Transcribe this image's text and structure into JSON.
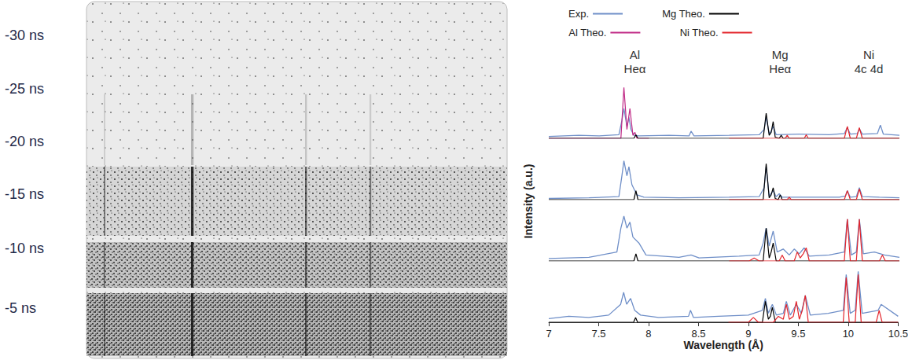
{
  "film": {
    "time_labels": [
      "-30 ns",
      "-25 ns",
      "-20 ns",
      "-15 ns",
      "-10 ns",
      "-5 ns"
    ]
  },
  "chart_data": {
    "type": "line",
    "xlabel": "Wavelength (Å)",
    "ylabel": "Intensity (a.u.)",
    "xlim": [
      7,
      10.5
    ],
    "xticks": [
      7,
      7.5,
      8,
      8.5,
      9,
      9.5,
      10,
      10.5
    ],
    "ylim": [
      0,
      1
    ],
    "tick_labels": "x",
    "legend": "top",
    "series": [
      {
        "name": "Exp.",
        "color": "#6f8fc8"
      },
      {
        "name": "Mg Theo.",
        "color": "#000000"
      },
      {
        "name": "Al Theo.",
        "color": "#c02a86"
      },
      {
        "name": "Ni Theo.",
        "color": "#e3242b"
      }
    ],
    "annotations": [
      {
        "lines": [
          "Al",
          "Heα"
        ],
        "x": 7.75
      },
      {
        "lines": [
          "Mg",
          "Heα"
        ],
        "x": 9.2
      },
      {
        "lines": [
          "Ni",
          "4c 4d"
        ],
        "x": 10.05
      }
    ],
    "panels": [
      {
        "series": [
          {
            "name": "Exp.",
            "x": [
              7,
              7.3,
              7.5,
              7.7,
              7.73,
              7.75,
              7.78,
              7.8,
              7.82,
              7.85,
              7.9,
              8.2,
              8.4,
              8.42,
              8.45,
              8.8,
              9.1,
              9.15,
              9.17,
              9.2,
              9.22,
              9.24,
              9.27,
              9.5,
              9.8,
              9.95,
              9.98,
              10.01,
              10.08,
              10.1,
              10.13,
              10.28,
              10.31,
              10.34,
              10.5
            ],
            "values": [
              0.03,
              0.05,
              0.04,
              0.06,
              0.3,
              0.5,
              0.2,
              0.35,
              0.15,
              0.05,
              0.04,
              0.05,
              0.04,
              0.12,
              0.04,
              0.05,
              0.06,
              0.15,
              0.35,
              0.08,
              0.12,
              0.2,
              0.06,
              0.07,
              0.06,
              0.08,
              0.18,
              0.07,
              0.08,
              0.16,
              0.07,
              0.08,
              0.22,
              0.07,
              0.05
            ]
          },
          {
            "name": "Al Theo.",
            "x": [
              7,
              7.72,
              7.75,
              7.78,
              7.81,
              7.84,
              7.86,
              7.88,
              8.0
            ],
            "values": [
              0,
              0,
              0.85,
              0.15,
              0.5,
              0.05,
              0.1,
              0,
              0
            ]
          },
          {
            "name": "Mg Theo.",
            "x": [
              7,
              7.85,
              7.87,
              7.89,
              9.14,
              9.17,
              9.2,
              9.22,
              9.24,
              9.26,
              9.3,
              9.32,
              9.34,
              10.5
            ],
            "values": [
              0,
              0,
              0.06,
              0,
              0,
              0.42,
              0.05,
              0.1,
              0.28,
              0.02,
              0,
              0.05,
              0,
              0
            ]
          },
          {
            "name": "Ni Theo.",
            "x": [
              8.8,
              9.36,
              9.38,
              9.4,
              9.55,
              9.57,
              9.59,
              9.95,
              9.98,
              10.01,
              10.07,
              10.1,
              10.13,
              10.5
            ],
            "values": [
              0,
              0,
              0.05,
              0,
              0,
              0.06,
              0,
              0,
              0.2,
              0,
              0,
              0.18,
              0,
              0
            ]
          }
        ]
      },
      {
        "series": [
          {
            "name": "Exp.",
            "x": [
              7,
              7.4,
              7.7,
              7.73,
              7.75,
              7.78,
              7.8,
              7.83,
              7.88,
              7.95,
              8.3,
              8.8,
              9.1,
              9.15,
              9.17,
              9.2,
              9.24,
              9.27,
              9.3,
              9.33,
              9.6,
              9.9,
              9.96,
              9.98,
              10.01,
              10.07,
              10.1,
              10.13,
              10.3,
              10.5
            ],
            "values": [
              0.02,
              0.03,
              0.05,
              0.4,
              0.65,
              0.4,
              0.55,
              0.25,
              0.08,
              0.04,
              0.03,
              0.04,
              0.05,
              0.2,
              0.55,
              0.06,
              0.15,
              0.05,
              0.1,
              0.04,
              0.04,
              0.04,
              0.06,
              0.15,
              0.04,
              0.05,
              0.2,
              0.05,
              0.04,
              0.03
            ]
          },
          {
            "name": "Mg Theo.",
            "x": [
              7,
              7.85,
              7.87,
              7.89,
              9.14,
              9.17,
              9.2,
              9.22,
              9.24,
              9.26,
              9.29,
              9.31,
              9.33,
              10.5
            ],
            "values": [
              0,
              0,
              0.15,
              0,
              0,
              0.6,
              0.03,
              0.08,
              0.2,
              0.02,
              0,
              0.08,
              0,
              0
            ]
          },
          {
            "name": "Ni Theo.",
            "x": [
              8.8,
              9.38,
              9.4,
              9.42,
              9.95,
              9.98,
              10.01,
              10.07,
              10.1,
              10.13,
              10.5
            ],
            "values": [
              0,
              0,
              0.04,
              0,
              0,
              0.15,
              0,
              0,
              0.18,
              0,
              0
            ]
          }
        ]
      },
      {
        "series": [
          {
            "name": "Exp.",
            "x": [
              7,
              7.4,
              7.68,
              7.72,
              7.75,
              7.78,
              7.81,
              7.84,
              7.9,
              7.97,
              8.3,
              8.42,
              8.5,
              8.9,
              9.1,
              9.14,
              9.17,
              9.2,
              9.24,
              9.28,
              9.34,
              9.4,
              9.45,
              9.5,
              9.55,
              9.6,
              9.8,
              9.95,
              9.98,
              10.02,
              10.07,
              10.1,
              10.14,
              10.25,
              10.35,
              10.5
            ],
            "values": [
              0.04,
              0.06,
              0.15,
              0.55,
              0.75,
              0.55,
              0.65,
              0.4,
              0.3,
              0.1,
              0.06,
              0.1,
              0.05,
              0.08,
              0.1,
              0.3,
              0.55,
              0.25,
              0.5,
              0.15,
              0.2,
              0.1,
              0.2,
              0.12,
              0.22,
              0.08,
              0.1,
              0.15,
              0.7,
              0.1,
              0.15,
              0.7,
              0.12,
              0.15,
              0.1,
              0.06
            ]
          },
          {
            "name": "Mg Theo.",
            "x": [
              7,
              7.85,
              7.87,
              7.89,
              9.14,
              9.17,
              9.2,
              9.22,
              9.24,
              9.27,
              10.5
            ],
            "values": [
              0,
              0,
              0.12,
              0,
              0,
              0.55,
              0.05,
              0.15,
              0.3,
              0,
              0
            ]
          },
          {
            "name": "Ni Theo.",
            "x": [
              8.8,
              9.0,
              9.05,
              9.1,
              9.3,
              9.33,
              9.36,
              9.45,
              9.48,
              9.51,
              9.54,
              9.57,
              9.6,
              9.95,
              9.98,
              10.01,
              10.07,
              10.1,
              10.13,
              10.3,
              10.33,
              10.36,
              10.5
            ],
            "values": [
              0,
              0,
              0.05,
              0,
              0,
              0.1,
              0,
              0,
              0.15,
              0.05,
              0.12,
              0.22,
              0,
              0,
              0.7,
              0,
              0,
              0.7,
              0,
              0,
              0.1,
              0,
              0
            ]
          }
        ]
      },
      {
        "series": [
          {
            "name": "Exp.",
            "x": [
              7,
              7.2,
              7.4,
              7.6,
              7.72,
              7.75,
              7.78,
              7.82,
              7.86,
              7.92,
              8.1,
              8.4,
              8.42,
              8.45,
              8.7,
              9.0,
              9.14,
              9.17,
              9.2,
              9.24,
              9.28,
              9.35,
              9.38,
              9.42,
              9.48,
              9.53,
              9.57,
              9.62,
              9.8,
              9.95,
              9.98,
              10.02,
              10.07,
              10.1,
              10.14,
              10.3,
              10.33,
              10.5
            ],
            "values": [
              0.06,
              0.1,
              0.08,
              0.12,
              0.3,
              0.5,
              0.3,
              0.4,
              0.2,
              0.12,
              0.08,
              0.1,
              0.2,
              0.08,
              0.1,
              0.12,
              0.2,
              0.4,
              0.15,
              0.3,
              0.12,
              0.15,
              0.35,
              0.12,
              0.3,
              0.15,
              0.45,
              0.12,
              0.15,
              0.2,
              0.8,
              0.15,
              0.2,
              0.85,
              0.15,
              0.2,
              0.3,
              0.1
            ]
          },
          {
            "name": "Mg Theo.",
            "x": [
              7,
              7.85,
              7.87,
              7.89,
              9.14,
              9.17,
              9.2,
              9.22,
              9.24,
              9.27,
              10.5
            ],
            "values": [
              0,
              0,
              0.08,
              0,
              0,
              0.35,
              0.05,
              0.1,
              0.25,
              0,
              0
            ]
          },
          {
            "name": "Ni Theo.",
            "x": [
              8.8,
              9.0,
              9.05,
              9.1,
              9.25,
              9.3,
              9.35,
              9.38,
              9.41,
              9.45,
              9.48,
              9.51,
              9.54,
              9.57,
              9.6,
              9.95,
              9.98,
              10.01,
              10.07,
              10.1,
              10.13,
              10.28,
              10.31,
              10.34,
              10.5
            ],
            "values": [
              0,
              0,
              0.08,
              0,
              0,
              0.1,
              0.05,
              0.3,
              0.05,
              0.1,
              0.35,
              0.05,
              0.2,
              0.45,
              0,
              0,
              0.75,
              0,
              0,
              0.8,
              0,
              0,
              0.2,
              0,
              0
            ]
          }
        ]
      }
    ]
  }
}
